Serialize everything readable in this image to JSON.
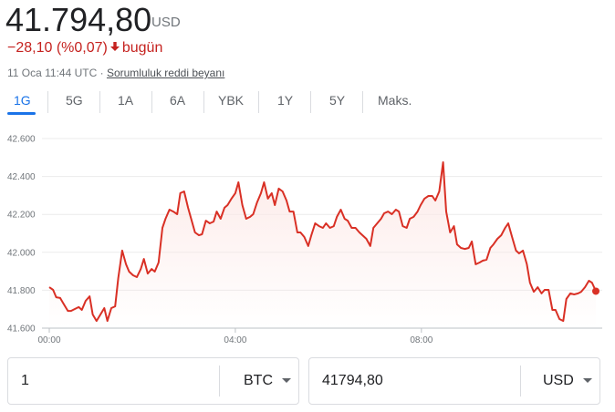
{
  "header": {
    "price": "41.794,80",
    "currency": "USD",
    "change": "−28,10 (%0,07)",
    "period": "bugün",
    "timestamp": "11 Oca 11:44 UTC · ",
    "disclaimer": "Sorumluluk reddi beyanı"
  },
  "tabs": [
    "1G",
    "5G",
    "1A",
    "6A",
    "YBK",
    "1Y",
    "5Y",
    "Maks."
  ],
  "converter": {
    "from_amount": "1",
    "from_currency": "BTC",
    "to_amount": "41794,80",
    "to_currency": "USD"
  },
  "chart_data": {
    "type": "line",
    "x": [
      0,
      5,
      9,
      14,
      19,
      24,
      28,
      33,
      38,
      42,
      47,
      52,
      56,
      61,
      66,
      71,
      75,
      80,
      85,
      89,
      94,
      99,
      103,
      108,
      113,
      118,
      122,
      127,
      132,
      136,
      141,
      146,
      150,
      155,
      160,
      165,
      169,
      174,
      179,
      183,
      188,
      193,
      197,
      202,
      207,
      212,
      216,
      221,
      226,
      230,
      235,
      240,
      244,
      249,
      254,
      259,
      263,
      268,
      273,
      277,
      282,
      287,
      291,
      296,
      301,
      306,
      310,
      315,
      320,
      324,
      329,
      334,
      338,
      343,
      348,
      353,
      357,
      362,
      367,
      371,
      376,
      381,
      385,
      390,
      395,
      400,
      404,
      409,
      414,
      418,
      423,
      428,
      432,
      437,
      442,
      447,
      451,
      456,
      461,
      465,
      470,
      475,
      479,
      484,
      489,
      494,
      498,
      503,
      508,
      512,
      517,
      522,
      526,
      531,
      536,
      541,
      545,
      550,
      555,
      559,
      564,
      569,
      573,
      578,
      583,
      588,
      592,
      597,
      602,
      606,
      611,
      616,
      620,
      625,
      630,
      635,
      639,
      644,
      649,
      653,
      658,
      663,
      667,
      672,
      677,
      682,
      686,
      691,
      696,
      700,
      705
    ],
    "series": [
      {
        "name": "BTC/USD",
        "color": "#d93025",
        "values": [
          41816,
          41802,
          41763,
          41759,
          41725,
          41691,
          41691,
          41701,
          41711,
          41696,
          41744,
          41768,
          41672,
          41638,
          41672,
          41706,
          41638,
          41706,
          41715,
          41864,
          42009,
          41937,
          41898,
          41879,
          41869,
          41912,
          41965,
          41888,
          41912,
          41898,
          41946,
          42129,
          42177,
          42225,
          42215,
          42201,
          42312,
          42321,
          42235,
          42177,
          42105,
          42090,
          42095,
          42167,
          42153,
          42162,
          42215,
          42177,
          42235,
          42249,
          42283,
          42312,
          42369,
          42249,
          42177,
          42187,
          42201,
          42263,
          42312,
          42369,
          42283,
          42312,
          42249,
          42336,
          42321,
          42273,
          42215,
          42215,
          42105,
          42105,
          42081,
          42033,
          42090,
          42153,
          42138,
          42129,
          42153,
          42129,
          42138,
          42187,
          42225,
          42177,
          42167,
          42129,
          42129,
          42105,
          42090,
          42071,
          42033,
          42129,
          42153,
          42177,
          42206,
          42215,
          42201,
          42225,
          42215,
          42138,
          42129,
          42177,
          42187,
          42215,
          42249,
          42283,
          42297,
          42297,
          42273,
          42321,
          42475,
          42215,
          42105,
          42138,
          42042,
          42023,
          42018,
          42023,
          42057,
          41937,
          41946,
          41956,
          41961,
          42023,
          42042,
          42071,
          42090,
          42129,
          42153,
          42081,
          42009,
          41994,
          42009,
          41937,
          41840,
          41792,
          41816,
          41783,
          41802,
          41802,
          41696,
          41696,
          41648,
          41638,
          41754,
          41783,
          41778,
          41783,
          41792,
          41816,
          41850,
          41840,
          41795
        ]
      }
    ],
    "xlim": [
      0,
      705
    ],
    "xticks": [
      {
        "value": 0,
        "label": "00:00"
      },
      {
        "value": 240,
        "label": "04:00"
      },
      {
        "value": 480,
        "label": "08:00"
      }
    ],
    "ylim": [
      41600,
      42600
    ],
    "yticks": [
      {
        "value": 41600,
        "label": "41.600"
      },
      {
        "value": 41800,
        "label": "41.800"
      },
      {
        "value": 42000,
        "label": "42.000"
      },
      {
        "value": 42200,
        "label": "42.200"
      },
      {
        "value": 42400,
        "label": "42.400"
      },
      {
        "value": 42600,
        "label": "42.600"
      }
    ],
    "grid": true
  }
}
